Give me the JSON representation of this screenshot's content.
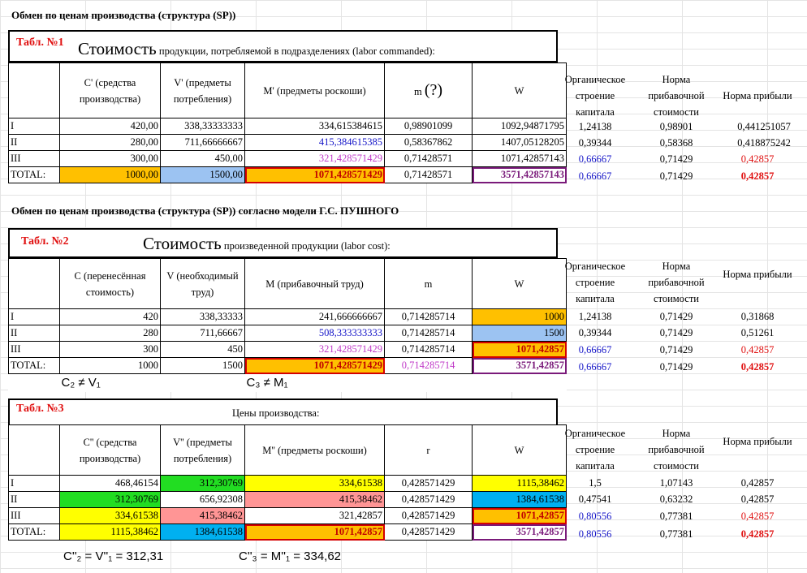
{
  "heading1": "Обмен по ценам производства (структура (SP))",
  "heading2": "Обмен по ценам производства (структура (SP)) согласно модели  Г.С. ПУШНОГО",
  "side_headers": [
    "Органическое строение капитала",
    "Норма прибавочной стоимости",
    "Норма прибыли"
  ],
  "table1": {
    "label": "Табл. №1",
    "title_big": "Стоимость",
    "title_small": "продукции, потребляемой в подразделениях (labor commanded):",
    "headers": [
      "C' (средства производства)",
      "V' (предметы потребления)",
      "M' (предметы роскоши)",
      "m",
      "(?)",
      "W"
    ],
    "rows": [
      [
        "I",
        "420,00",
        "338,33333333",
        "334,615384615",
        "0,98901099",
        "1092,94871795"
      ],
      [
        "II",
        "280,00",
        "711,66666667",
        "415,384615385",
        "0,58367862",
        "1407,05128205"
      ],
      [
        "III",
        "300,00",
        "450,00",
        "321,428571429",
        "0,71428571",
        "1071,42857143"
      ],
      [
        "TOTAL:",
        "1000,00",
        "1500,00",
        "1071,428571429",
        "0,71428571",
        "3571,42857143"
      ]
    ],
    "side": [
      [
        "1,24138",
        "0,98901",
        "0,441251057"
      ],
      [
        "0,39344",
        "0,58368",
        "0,418875242"
      ],
      [
        "0,66667",
        "0,71429",
        "0,42857"
      ],
      [
        "0,66667",
        "0,71429",
        "0,42857"
      ]
    ]
  },
  "table2": {
    "label": "Табл. №2",
    "title_big": "Стоимость",
    "title_small": "произведенной продукции (labor cost):",
    "headers": [
      "C (перенесённая стоимость)",
      "V (необходимый труд)",
      "M (прибавочный труд)",
      "m",
      "W"
    ],
    "rows": [
      [
        "I",
        "420",
        "338,33333",
        "241,666666667",
        "0,714285714",
        "1000"
      ],
      [
        "II",
        "280",
        "711,66667",
        "508,333333333",
        "0,714285714",
        "1500"
      ],
      [
        "III",
        "300",
        "450",
        "321,428571429",
        "0,714285714",
        "1071,42857"
      ],
      [
        "TOTAL:",
        "1000",
        "1500",
        "1071,428571429",
        "0,714285714",
        "3571,42857"
      ]
    ],
    "side": [
      [
        "1,24138",
        "0,71429",
        "0,31868"
      ],
      [
        "0,39344",
        "0,71429",
        "0,51261"
      ],
      [
        "0,66667",
        "0,71429",
        "0,42857"
      ],
      [
        "0,66667",
        "0,71429",
        "0,42857"
      ]
    ],
    "note1": "C₂ ≠ V₁",
    "note2": "C₃ ≠ M₁"
  },
  "table3": {
    "label": "Табл. №3",
    "title": "Цены производства:",
    "headers": [
      "C'' (средства производства)",
      "V'' (предметы потребления)",
      "M'' (предметы роскоши)",
      "r",
      "W"
    ],
    "rows": [
      [
        "I",
        "468,46154",
        "312,30769",
        "334,61538",
        "0,428571429",
        "1115,38462"
      ],
      [
        "II",
        "312,30769",
        "656,92308",
        "415,38462",
        "0,428571429",
        "1384,61538"
      ],
      [
        "III",
        "334,61538",
        "415,38462",
        "321,42857",
        "0,428571429",
        "1071,42857"
      ],
      [
        "TOTAL:",
        "1115,38462",
        "1384,61538",
        "1071,42857",
        "0,428571429",
        "3571,42857"
      ]
    ],
    "side": [
      [
        "1,5",
        "1,07143",
        "0,42857"
      ],
      [
        "0,47541",
        "0,63232",
        "0,42857"
      ],
      [
        "0,80556",
        "0,77381",
        "0,42857"
      ],
      [
        "0,80556",
        "0,77381",
        "0,42857"
      ]
    ],
    "note1": "C''₂ = V''₁ = 312,31",
    "note2": "C''₃ = M''₁ = 334,62"
  },
  "colors": {
    "orange": "#ffc000",
    "light_blue": "#9cc3f2",
    "green": "#22dd22",
    "yellow": "#ffff00",
    "salmon": "#ff9595",
    "cyan": "#00b0f0",
    "blue_text": "#1515c8",
    "red_text": "#e01010",
    "purple_text": "#7a1a7a",
    "magenta_text": "#c03ac8"
  }
}
